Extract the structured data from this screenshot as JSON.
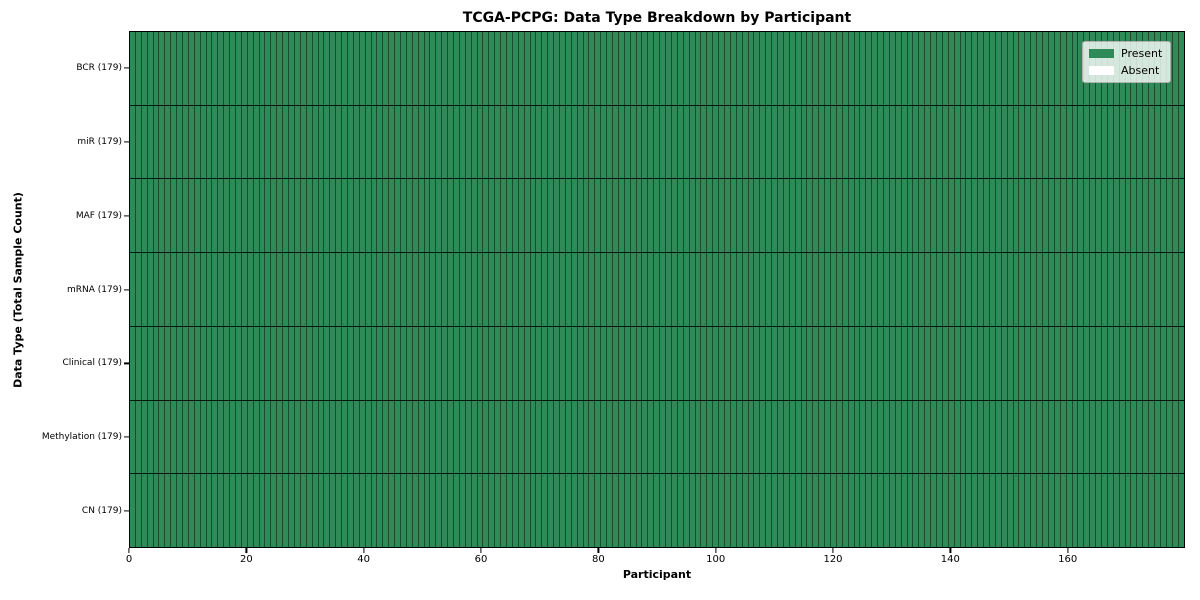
{
  "figure": {
    "title": "TCGA-PCPG: Data Type Breakdown by Participant",
    "background": "#ffffff"
  },
  "legend": {
    "position": "upper right",
    "items": [
      {
        "label": "Present",
        "color": "#2e8b57"
      },
      {
        "label": "Absent",
        "color": "#ffffff"
      }
    ]
  },
  "colors": {
    "present": "#2e8b57",
    "absent": "#ffffff",
    "cell_edge": "rgba(0,0,0,0.45)",
    "row_divider": "rgba(0,0,0,0.85)",
    "spine": "#000000"
  },
  "chart_data": {
    "type": "heatmap",
    "title": "TCGA-PCPG: Data Type Breakdown by Participant",
    "xlabel": "Participant",
    "ylabel": "Data Type (Total Sample Count)",
    "x_ticks": [
      0,
      20,
      40,
      60,
      80,
      100,
      120,
      140,
      160
    ],
    "xlim": [
      0,
      180
    ],
    "participants": 179,
    "grid": "cell-borders",
    "legend_entries": [
      "Present",
      "Absent"
    ],
    "legend_position": "upper right",
    "rows": [
      {
        "label": "BCR (179)",
        "data_type": "BCR",
        "total_samples": 179,
        "present_count": 179,
        "absent_count": 0
      },
      {
        "label": "miR (179)",
        "data_type": "miR",
        "total_samples": 179,
        "present_count": 179,
        "absent_count": 0
      },
      {
        "label": "MAF (179)",
        "data_type": "MAF",
        "total_samples": 179,
        "present_count": 179,
        "absent_count": 0
      },
      {
        "label": "mRNA (179)",
        "data_type": "mRNA",
        "total_samples": 179,
        "present_count": 179,
        "absent_count": 0
      },
      {
        "label": "Clinical (179)",
        "data_type": "Clinical",
        "total_samples": 179,
        "present_count": 179,
        "absent_count": 0
      },
      {
        "label": "Methylation (179)",
        "data_type": "Methylation",
        "total_samples": 179,
        "present_count": 179,
        "absent_count": 0
      },
      {
        "label": "CN (179)",
        "data_type": "CN",
        "total_samples": 179,
        "present_count": 179,
        "absent_count": 0
      }
    ]
  }
}
